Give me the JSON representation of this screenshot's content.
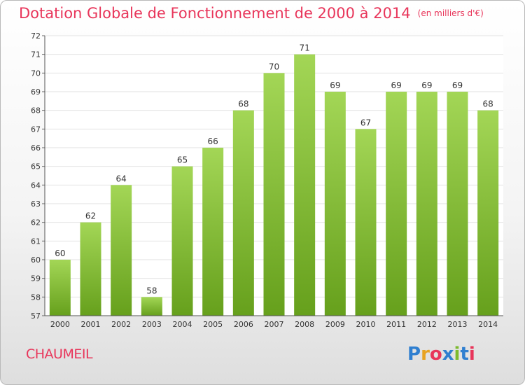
{
  "title": "Dotation Globale de Fonctionnement de 2000 à 2014",
  "unit_note": "(en milliers d'€)",
  "commune": "CHAUMEIL",
  "logo": {
    "letters": [
      "P",
      "r",
      "o",
      "x",
      "i",
      "t",
      "i"
    ],
    "colors": [
      "#2f7fd0",
      "#e8a321",
      "#e8355a",
      "#2f7fd0",
      "#7cba2e",
      "#2f7fd0",
      "#e8355a"
    ]
  },
  "chart_data": {
    "type": "bar",
    "title": "Dotation Globale de Fonctionnement de 2000 à 2014",
    "categories": [
      "2000",
      "2001",
      "2002",
      "2003",
      "2004",
      "2005",
      "2006",
      "2007",
      "2008",
      "2009",
      "2010",
      "2011",
      "2012",
      "2013",
      "2014"
    ],
    "values": [
      60,
      62,
      64,
      58,
      65,
      66,
      68,
      70,
      71,
      69,
      67,
      69,
      69,
      69,
      68
    ],
    "ylim": [
      57,
      72
    ],
    "yticks": [
      57,
      58,
      59,
      60,
      61,
      62,
      63,
      64,
      65,
      66,
      67,
      68,
      69,
      70,
      71,
      72
    ],
    "grid": true,
    "bar_color": "#7cba2e",
    "xlabel": "",
    "ylabel": ""
  }
}
